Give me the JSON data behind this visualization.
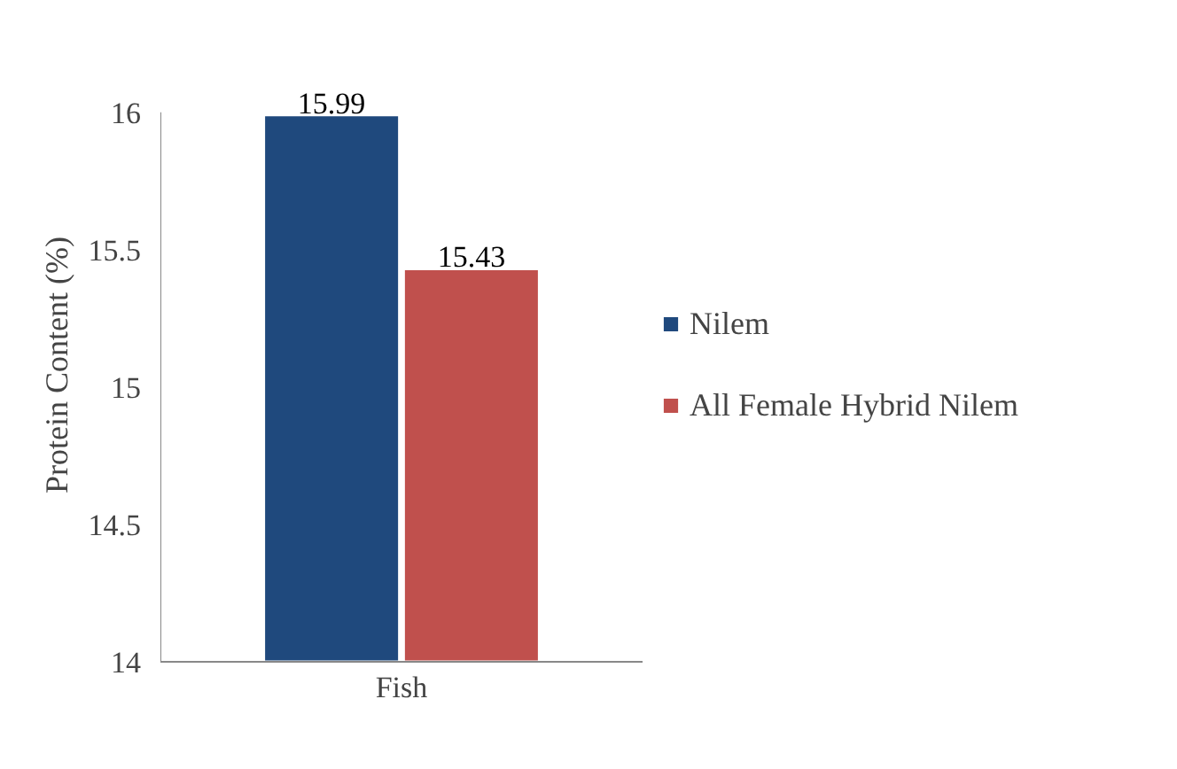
{
  "chart_data": {
    "type": "bar",
    "ylabel": "Protein Content (%)",
    "categories": [
      "Fish"
    ],
    "series": [
      {
        "name": "Nilem",
        "color": "#1f497d",
        "values": [
          15.99
        ]
      },
      {
        "name": "All Female Hybrid Nilem",
        "color": "#c0504d",
        "values": [
          15.43
        ]
      }
    ],
    "ylim": [
      14,
      16
    ],
    "yticks": [
      14,
      14.5,
      15,
      15.5,
      16
    ],
    "legend": "right",
    "data_labels": true
  }
}
